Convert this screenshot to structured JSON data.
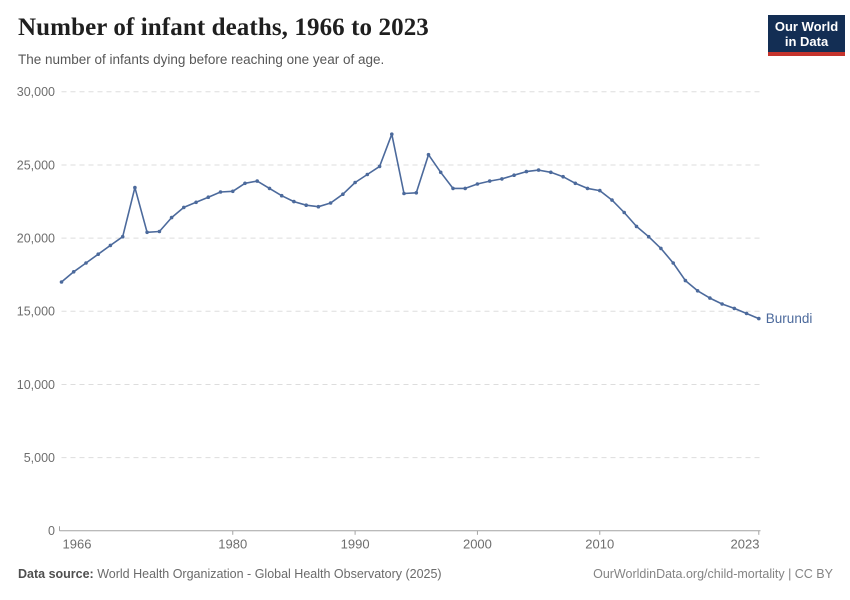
{
  "header": {
    "title": "Number of infant deaths, 1966 to 2023",
    "subtitle": "The number of infants dying before reaching one year of age."
  },
  "logo": {
    "line1": "Our World",
    "line2": "in Data",
    "bg_color": "#132e54",
    "stripe_color": "#c5332c"
  },
  "entity_label": "Burundi",
  "colors": {
    "line": "#4c6a9c",
    "series_label": "#4c6a9c",
    "grid": "#dddddd",
    "axis": "#a3a3a3",
    "tick_label": "#6e6e6e"
  },
  "chart_data": {
    "type": "line",
    "title": "Number of infant deaths, 1966 to 2023",
    "subtitle": "The number of infants dying before reaching one year of age.",
    "xlabel": "",
    "ylabel": "",
    "xlim": [
      1966,
      2023
    ],
    "ylim": [
      0,
      30000
    ],
    "grid": "horizontal-dashed",
    "markers": true,
    "legend_position": "line-end-label",
    "x": [
      1966,
      1967,
      1968,
      1969,
      1970,
      1971,
      1972,
      1973,
      1974,
      1975,
      1976,
      1977,
      1978,
      1979,
      1980,
      1981,
      1982,
      1983,
      1984,
      1985,
      1986,
      1987,
      1988,
      1989,
      1990,
      1991,
      1992,
      1993,
      1994,
      1995,
      1996,
      1997,
      1998,
      1999,
      2000,
      2001,
      2002,
      2003,
      2004,
      2005,
      2006,
      2007,
      2008,
      2009,
      2010,
      2011,
      2012,
      2013,
      2014,
      2015,
      2016,
      2017,
      2018,
      2019,
      2020,
      2021,
      2022,
      2023
    ],
    "series": [
      {
        "name": "Burundi",
        "color": "#4c6a9c",
        "values": [
          17000,
          17700,
          18300,
          18900,
          19500,
          20100,
          23450,
          20400,
          20450,
          21400,
          22100,
          22450,
          22800,
          23150,
          23200,
          23750,
          23900,
          23400,
          22900,
          22500,
          22250,
          22150,
          22400,
          23000,
          23800,
          24350,
          24900,
          27100,
          23050,
          23100,
          25700,
          24500,
          23400,
          23400,
          23700,
          23900,
          24050,
          24300,
          24550,
          24650,
          24500,
          24200,
          23750,
          23400,
          23250,
          22600,
          21750,
          20800,
          20100,
          19300,
          18300,
          17100,
          16400,
          15900,
          15500,
          15200,
          14850,
          14500
        ]
      }
    ],
    "y_ticks": [
      {
        "value": 0,
        "label": "0"
      },
      {
        "value": 5000,
        "label": "5,000"
      },
      {
        "value": 10000,
        "label": "10,000"
      },
      {
        "value": 15000,
        "label": "15,000"
      },
      {
        "value": 20000,
        "label": "20,000"
      },
      {
        "value": 25000,
        "label": "25,000"
      },
      {
        "value": 30000,
        "label": "30,000"
      }
    ],
    "x_ticks": [
      {
        "value": 1966,
        "label": "1966"
      },
      {
        "value": 1980,
        "label": "1980"
      },
      {
        "value": 1990,
        "label": "1990"
      },
      {
        "value": 2000,
        "label": "2000"
      },
      {
        "value": 2010,
        "label": "2010"
      },
      {
        "value": 2023,
        "label": "2023"
      }
    ]
  },
  "footer": {
    "source_label": "Data source:",
    "source_value": "World Health Organization - Global Health Observatory (2025)",
    "attribution": "OurWorldinData.org/child-mortality | CC BY"
  }
}
